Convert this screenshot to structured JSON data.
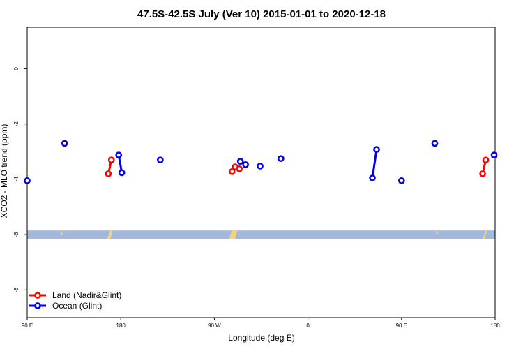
{
  "chart_data": {
    "type": "line",
    "title": "47.5S-42.5S July (Ver 10)   2015-01-01 to 2020-12-18",
    "xlabel": "Longitude (deg E)",
    "ylabel": "XCO2 - MLO trend (ppm)",
    "xlim": [
      90,
      540
    ],
    "ylim": [
      -9.0,
      1.5
    ],
    "x_ticks": [
      {
        "value": 90,
        "label": "90 E"
      },
      {
        "value": 180,
        "label": "180"
      },
      {
        "value": 270,
        "label": "90 W"
      },
      {
        "value": 360,
        "label": "0"
      },
      {
        "value": 450,
        "label": "90 E"
      },
      {
        "value": 540,
        "label": "180"
      }
    ],
    "y_ticks": [
      {
        "value": 0,
        "label": "0"
      },
      {
        "value": -2,
        "label": "-2"
      },
      {
        "value": -4,
        "label": "-4"
      },
      {
        "value": -6,
        "label": "-6"
      },
      {
        "value": -8,
        "label": "-8"
      }
    ],
    "series": [
      {
        "name": "Land (Nadir&Glint)",
        "color": "#ff0000",
        "segments": [
          [
            [
              168,
              -3.8
            ],
            [
              171,
              -3.3
            ]
          ],
          [
            [
              287,
              -3.72
            ],
            [
              290,
              -3.55
            ],
            [
              294,
              -3.62
            ]
          ],
          [
            [
              528,
              -3.8
            ],
            [
              531,
              -3.3
            ]
          ]
        ]
      },
      {
        "name": "Ocean (Glint)",
        "color": "#0000ee",
        "segments": [
          [
            [
              90,
              -4.05
            ]
          ],
          [
            [
              126,
              -2.7
            ]
          ],
          [
            [
              178,
              -3.12
            ],
            [
              181,
              -3.76
            ]
          ],
          [
            [
              218,
              -3.3
            ]
          ],
          [
            [
              295,
              -3.35
            ],
            [
              300,
              -3.47
            ]
          ],
          [
            [
              314,
              -3.52
            ]
          ],
          [
            [
              334,
              -3.25
            ]
          ],
          [
            [
              422,
              -3.95
            ],
            [
              426,
              -2.92
            ]
          ],
          [
            [
              450,
              -4.05
            ]
          ],
          [
            [
              482,
              -2.7
            ]
          ],
          [
            [
              539,
              -3.12
            ]
          ]
        ]
      }
    ],
    "map_band": {
      "y_range": [
        -6.15,
        -5.85
      ],
      "ocean_color": "#a3b8d8",
      "land_color": "#f5d478"
    },
    "legend": {
      "position": "bottom-left"
    },
    "grid": false
  }
}
